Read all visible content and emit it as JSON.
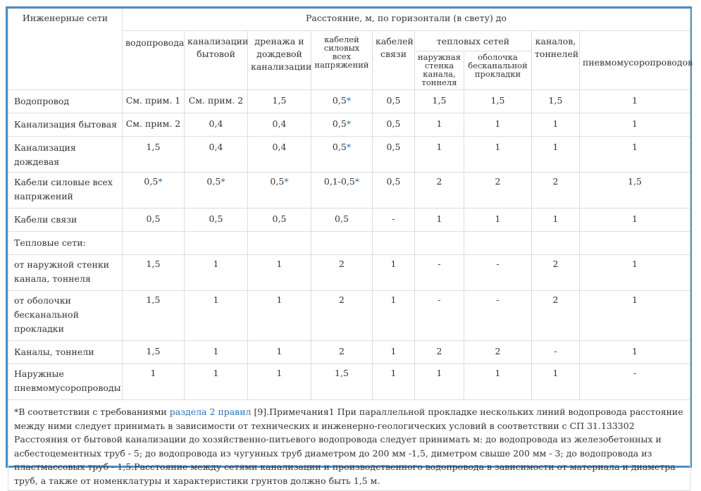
{
  "table": {
    "corner_label": "Инженерные сети",
    "group_header": "Расстояние, м, по горизонтали (в свету) до",
    "columns": {
      "water": "водопровода",
      "sewer_domestic": "канализации бытовой",
      "drainage": "дренажа и дождевой канализации",
      "cables_power": "кабелей силовых всех напряжений",
      "cables_comm": "кабелей связи",
      "heat_group": "тепловых сетей",
      "heat_outer_wall": "наружная стенка канала, тоннеля",
      "heat_ductless": "оболочка бесканальной прокладки",
      "channels": "каналов, тоннелей",
      "pneumo": "пневмомусоропроводов"
    },
    "rows": [
      {
        "label": "Водопровод",
        "c": [
          "См. прим. 1",
          "См. прим. 2",
          "1,5",
          "0,5",
          "0,5",
          "1,5",
          "1,5",
          "1,5",
          "1"
        ],
        "stars": [
          false,
          false,
          false,
          true,
          false,
          false,
          false,
          false,
          false
        ]
      },
      {
        "label": "Канализация бытовая",
        "c": [
          "См. прим. 2",
          "0,4",
          "0,4",
          "0,5",
          "0,5",
          "1",
          "1",
          "1",
          "1"
        ],
        "stars": [
          false,
          false,
          false,
          true,
          false,
          false,
          false,
          false,
          false
        ]
      },
      {
        "label": "Канализация дождевая",
        "c": [
          "1,5",
          "0,4",
          "0,4",
          "0,5",
          "0,5",
          "1",
          "1",
          "1",
          "1"
        ],
        "stars": [
          false,
          false,
          false,
          true,
          false,
          false,
          false,
          false,
          false
        ]
      },
      {
        "label": "Кабели силовые всех напряжений",
        "c": [
          "0,5",
          "0,5",
          "0,5",
          "0,1-0,5",
          "0,5",
          "2",
          "2",
          "2",
          "1,5"
        ],
        "stars": [
          true,
          true,
          true,
          true,
          false,
          false,
          false,
          false,
          false
        ]
      },
      {
        "label": "Кабели связи",
        "c": [
          "0,5",
          "0,5",
          "0,5",
          "0,5",
          "-",
          "1",
          "1",
          "1",
          "1"
        ],
        "stars": [
          false,
          false,
          false,
          false,
          false,
          false,
          false,
          false,
          false
        ]
      },
      {
        "label": "Тепловые сети:",
        "c": [
          "",
          "",
          "",
          "",
          "",
          "",
          "",
          "",
          ""
        ],
        "stars": [
          false,
          false,
          false,
          false,
          false,
          false,
          false,
          false,
          false
        ]
      },
      {
        "label": "от наружной стенки канала, тоннеля",
        "c": [
          "1,5",
          "1",
          "1",
          "2",
          "1",
          "-",
          "-",
          "2",
          "1"
        ],
        "stars": [
          false,
          false,
          false,
          false,
          false,
          false,
          false,
          false,
          false
        ]
      },
      {
        "label": "от оболочки бесканальной прокладки",
        "c": [
          "1,5",
          "1",
          "1",
          "2",
          "1",
          "-",
          "-",
          "2",
          "1"
        ],
        "stars": [
          false,
          false,
          false,
          false,
          false,
          false,
          false,
          false,
          false
        ]
      },
      {
        "label": "Каналы, тоннели",
        "c": [
          "1,5",
          "1",
          "1",
          "2",
          "1",
          "2",
          "2",
          "-",
          "1"
        ],
        "stars": [
          false,
          false,
          false,
          false,
          false,
          false,
          false,
          false,
          false
        ]
      },
      {
        "label": "Наружные пневмомусоропроводы",
        "c": [
          "1",
          "1",
          "1",
          "1,5",
          "1",
          "1",
          "1",
          "1",
          "-"
        ],
        "stars": [
          false,
          false,
          false,
          false,
          false,
          false,
          false,
          false,
          false
        ]
      }
    ],
    "star_symbol": "*"
  },
  "note": {
    "prefix": "*В соответствии с требованиями ",
    "link_text": "раздела 2 правил",
    "text": " [9].Примечания1 При параллельной прокладке нескольких линий водопровода расстояние между ними следует принимать в зависимости от технических и инженерно-геологических условий в соответствии с СП 31.133302 Расстояния от бытовой канализации до хозяйственно-питьевого водопровода следует принимать м: до водопровода из железобетонных и асбестоцементных труб - 5; до водопровода из чугунных труб диаметром до 200 мм -1,5, диметром свыше 200 мм - 3; до водопровода из пластмассовых труб - 1,5.Расстояние между сетями канализации и производственного водопровода в зависимости от материала и диаметра труб, а также от номенклатуры и характеристики грунтов должно быть 1,5 м."
  },
  "colors": {
    "frame": "#4a8fc9",
    "grid": "#dddddd",
    "text": "#333333",
    "link": "#2a6fb0"
  }
}
